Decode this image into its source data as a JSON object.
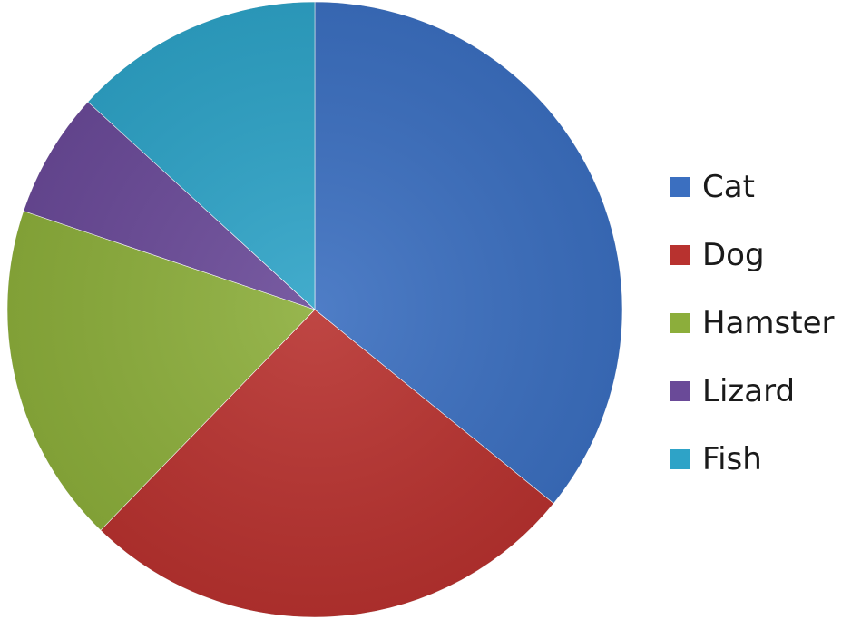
{
  "chart_data": {
    "type": "pie",
    "categories": [
      "Cat",
      "Dog",
      "Hamster",
      "Lizard",
      "Fish"
    ],
    "values": [
      38,
      28,
      19,
      7,
      14
    ],
    "colors": [
      "#3b6fc0",
      "#b8322f",
      "#8cae3b",
      "#6a4a98",
      "#2ea3c7"
    ],
    "start_angle_deg": 0,
    "direction": "clockwise",
    "legend": {
      "position": "right",
      "entries": [
        "Cat",
        "Dog",
        "Hamster",
        "Lizard",
        "Fish"
      ]
    }
  }
}
